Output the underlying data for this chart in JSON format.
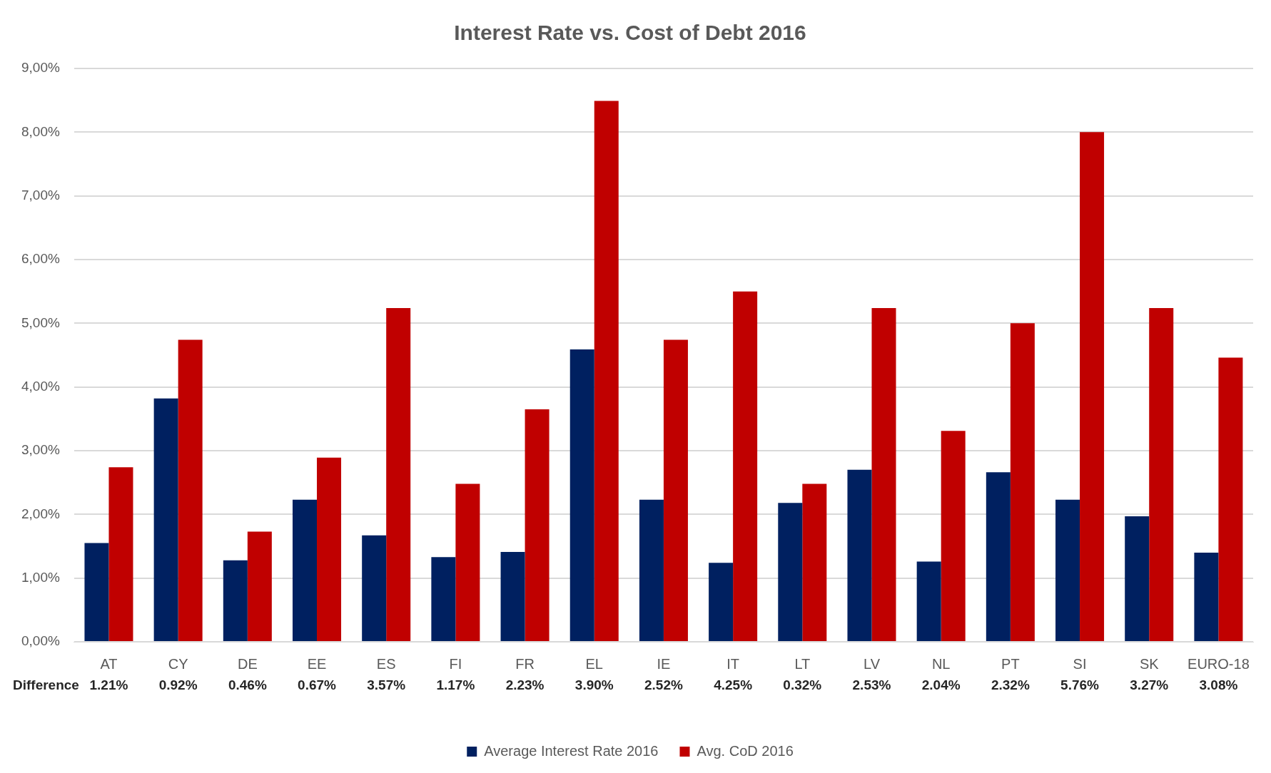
{
  "chart_data": {
    "type": "bar",
    "title": "Interest Rate vs. Cost of Debt 2016",
    "categories": [
      "AT",
      "CY",
      "DE",
      "EE",
      "ES",
      "FI",
      "FR",
      "EL",
      "IE",
      "IT",
      "LT",
      "LV",
      "NL",
      "PT",
      "SI",
      "SK",
      "EURO-18"
    ],
    "series": [
      {
        "name": "Average Interest Rate 2016",
        "color": "#002060",
        "values": [
          1.55,
          3.82,
          1.28,
          2.23,
          1.67,
          1.33,
          1.41,
          4.59,
          2.23,
          1.24,
          2.18,
          2.7,
          1.26,
          2.66,
          2.23,
          1.97,
          1.4
        ]
      },
      {
        "name": "Avg. CoD 2016",
        "color": "#c00000",
        "values": [
          2.74,
          4.74,
          1.73,
          2.89,
          5.24,
          2.48,
          3.65,
          8.49,
          4.74,
          5.5,
          2.48,
          5.24,
          3.31,
          5.0,
          8.0,
          5.24,
          4.46
        ]
      }
    ],
    "ylim": [
      0,
      9
    ],
    "yticks": [
      {
        "value": 0,
        "label": "0,00%"
      },
      {
        "value": 1,
        "label": "1,00%"
      },
      {
        "value": 2,
        "label": "2,00%"
      },
      {
        "value": 3,
        "label": "3,00%"
      },
      {
        "value": 4,
        "label": "4,00%"
      },
      {
        "value": 5,
        "label": "5,00%"
      },
      {
        "value": 6,
        "label": "6,00%"
      },
      {
        "value": 7,
        "label": "7,00%"
      },
      {
        "value": 8,
        "label": "8,00%"
      },
      {
        "value": 9,
        "label": "9,00%"
      }
    ],
    "grid": "y",
    "legend": "bottom",
    "annotations": [
      "Difference",
      "1.21%",
      "0.92%",
      "0.46%",
      "0.67%",
      "3.57%",
      "1.17%",
      "2.23%",
      "3.90%",
      "2.52%",
      "4.25%",
      "0.32%",
      "2.53%",
      "2.04%",
      "2.32%",
      "5.76%",
      "3.27%",
      "3.08%"
    ]
  }
}
